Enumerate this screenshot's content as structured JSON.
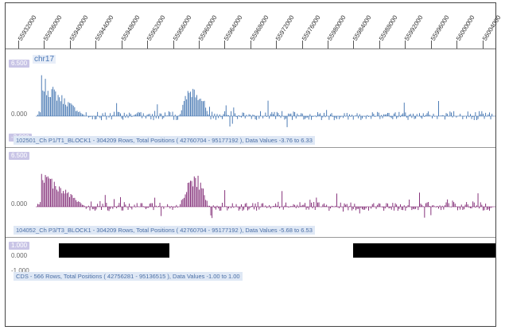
{
  "ruler": {
    "ticks": [
      "55932000",
      "55936000",
      "55940000",
      "55944000",
      "55948000",
      "55952000",
      "55956000",
      "55960000",
      "55964000",
      "55968000",
      "55972000",
      "55976000",
      "55980000",
      "55984000",
      "55988000",
      "55992000",
      "55996000",
      "56000000",
      "56004000"
    ]
  },
  "chromosome": "chr17",
  "tracks": [
    {
      "id": "track1",
      "ymax_label": "6.500",
      "zero_label": "0.000",
      "ymin_label": "-3.000",
      "info": "102501_Ch P1/T1_BLOCK1 - 304209 Rows, Total Positions ( 42760704 - 95177192 ), Data Values -3.76 to 6.33",
      "color": "#3b6fae",
      "ylim": [
        -3,
        6.5
      ]
    },
    {
      "id": "track2",
      "ymax_label": "6.500",
      "zero_label": "0.000",
      "info": "104052_Ch P3/T3_BLOCK1 - 304209 Rows, Total Positions ( 42760704 - 95177192 ), Data Values -5.68 to 6.53",
      "color": "#7a1f6e",
      "ylim": [
        -3,
        6.5
      ]
    },
    {
      "id": "track3",
      "ymax_label": "1.000",
      "zero_label": "0.000",
      "ymin_label": "-1.000",
      "info": "CDS - 566 Rows, Total Positions ( 42756281 - 95136515 ), Data Values -1.00 to 1.00",
      "color": "#000000",
      "ylim": [
        -1,
        1
      ]
    }
  ]
}
